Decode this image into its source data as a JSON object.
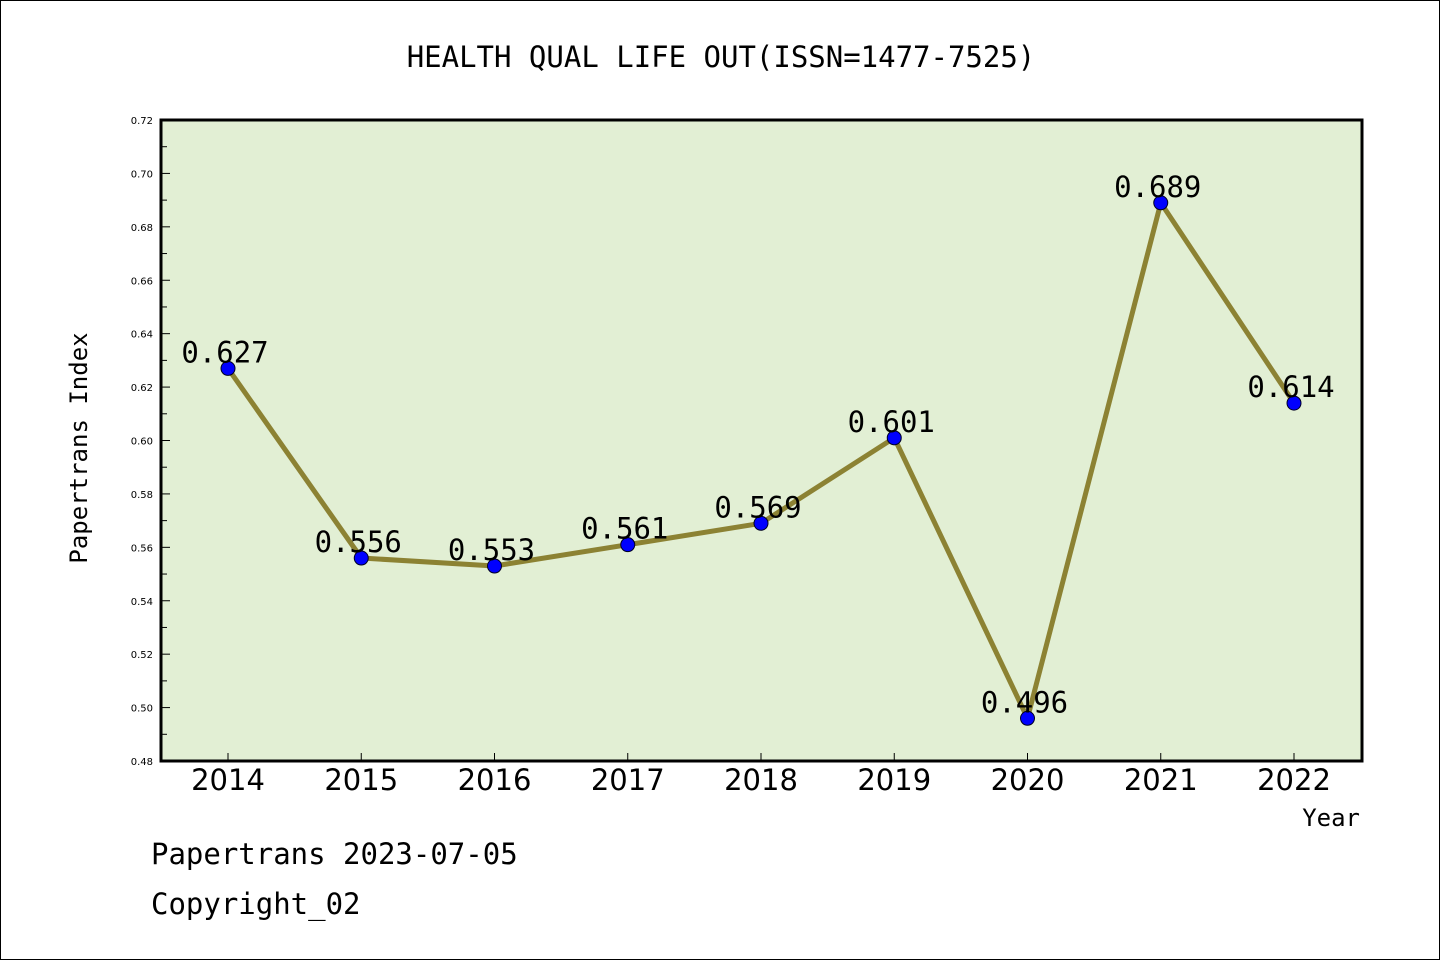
{
  "chart_data": {
    "type": "line",
    "title": "HEALTH QUAL LIFE OUT(ISSN=1477-7525)",
    "xlabel": "Year",
    "ylabel": "Papertrans Index",
    "categories": [
      "2014",
      "2015",
      "2016",
      "2017",
      "2018",
      "2019",
      "2020",
      "2021",
      "2022"
    ],
    "values": [
      0.627,
      0.556,
      0.553,
      0.561,
      0.569,
      0.601,
      0.496,
      0.689,
      0.614
    ],
    "data_labels": [
      "0.627",
      "0.556",
      "0.553",
      "0.561",
      "0.569",
      "0.601",
      "0.496",
      "0.689",
      "0.614"
    ],
    "ylim": [
      0.48,
      0.72
    ],
    "yticks": [
      "0.48",
      "0.50",
      "0.52",
      "0.54",
      "0.56",
      "0.58",
      "0.60",
      "0.62",
      "0.64",
      "0.66",
      "0.68",
      "0.70",
      "0.72"
    ],
    "grid": false,
    "legend": "none",
    "colors": {
      "plot_background": "#e2efd4",
      "line": "#8c8233",
      "marker": "#0000ff",
      "axis": "#000000"
    }
  },
  "footer": {
    "line1": "Papertrans 2023-07-05",
    "line2": "Copyright_02"
  }
}
